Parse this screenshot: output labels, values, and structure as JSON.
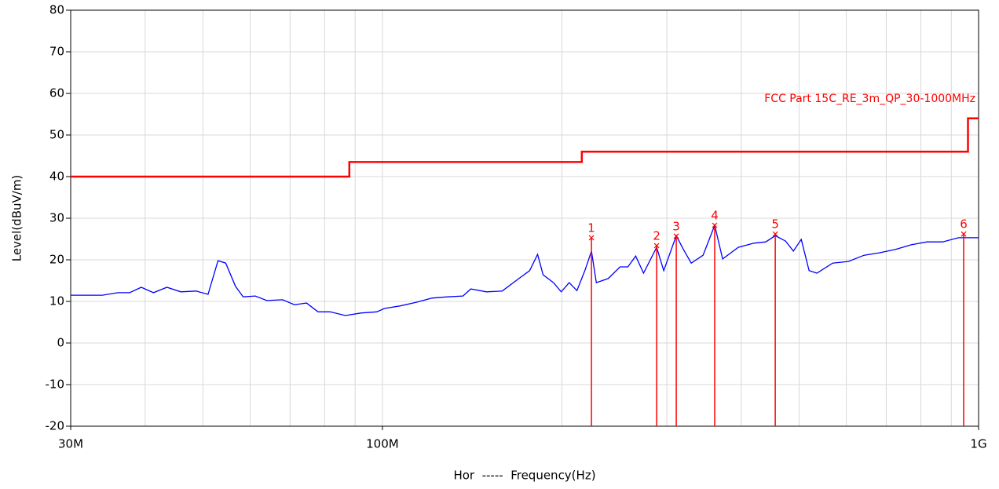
{
  "chart_data": {
    "type": "line",
    "xlabel": "Hor  -----  Frequency(Hz)",
    "ylabel": "Level(dBuV/m)",
    "xscale": "log",
    "xlim": [
      30000000,
      1000000000
    ],
    "ylim": [
      -20,
      80
    ],
    "xticks": [
      {
        "value": 30000000,
        "label": "30M"
      },
      {
        "value": 100000000,
        "label": "100M"
      },
      {
        "value": 1000000000,
        "label": "1G"
      }
    ],
    "xgrid": [
      40000000,
      50000000,
      60000000,
      70000000,
      80000000,
      90000000,
      200000000,
      300000000,
      400000000,
      500000000,
      600000000,
      700000000,
      800000000,
      900000000
    ],
    "yticks": [
      -20,
      -10,
      0,
      10,
      20,
      30,
      40,
      50,
      60,
      70,
      80
    ],
    "grid": true,
    "series": [
      {
        "color": "#0000ff",
        "x": [
          30000000,
          33900000,
          36000000,
          37680000,
          39400000,
          41300000,
          43500000,
          45900000,
          48700000,
          51000000,
          53000000,
          54600000,
          56700000,
          58400000,
          61200000,
          64000000,
          68000000,
          71200000,
          74600000,
          78000000,
          81700000,
          86700000,
          92000000,
          97800000,
          100800000,
          107000000,
          114000000,
          121000000,
          128600000,
          136500000,
          140700000,
          149400000,
          158800000,
          168700000,
          176600000,
          182100000,
          186000000,
          193600000,
          199500000,
          205700000,
          212000000,
          218600000,
          224200000,
          228500000,
          239200000,
          250400000,
          258100000,
          266000000,
          274200000,
          288400000,
          296400000,
          311100000,
          319800000,
          329600000,
          345000000,
          360900000,
          372100000,
          395300000,
          420000000,
          439600000,
          456000000,
          474400000,
          489000000,
          504100000,
          519600000,
          535500000,
          569100000,
          604700000,
          642600000,
          682700000,
          725500000,
          770800000,
          819000000,
          870300000,
          924600000,
          1000000000
        ],
        "values": [
          11.5,
          11.5,
          12.1,
          12.1,
          13.4,
          12.1,
          13.4,
          12.3,
          12.5,
          11.7,
          19.8,
          19.2,
          13.6,
          11.1,
          11.3,
          10.2,
          10.4,
          9.2,
          9.6,
          7.5,
          7.5,
          6.6,
          7.2,
          7.5,
          8.3,
          8.9,
          9.8,
          10.8,
          11.1,
          11.3,
          13.0,
          12.3,
          12.5,
          15.3,
          17.4,
          21.3,
          16.4,
          14.5,
          12.3,
          14.5,
          12.6,
          17.4,
          22.1,
          14.5,
          15.5,
          18.3,
          18.3,
          20.9,
          16.8,
          23.0,
          17.4,
          25.8,
          22.5,
          19.2,
          21.1,
          28.3,
          20.2,
          23.0,
          24.0,
          24.3,
          25.8,
          24.5,
          22.1,
          24.9,
          17.4,
          16.8,
          19.2,
          19.6,
          21.1,
          21.7,
          22.5,
          23.6,
          24.3,
          24.3,
          25.3,
          25.3
        ]
      },
      {
        "name": "FCC Part 15C_RE_3m_QP_30-1000MHz",
        "color": "#ff0000",
        "x": [
          30000000,
          88000000,
          88000000,
          216000000,
          216000000,
          960000000,
          960000000,
          1000000000
        ],
        "values": [
          40,
          40,
          43.5,
          43.5,
          46,
          46,
          54,
          54
        ]
      }
    ],
    "markers": {
      "color": "#ff0000",
      "labels": [
        "1",
        "2",
        "3",
        "4",
        "5",
        "6"
      ],
      "x": [
        224200000,
        288400000,
        311100000,
        360900000,
        456000000,
        944000000
      ],
      "values": [
        25.3,
        23.4,
        25.7,
        28.3,
        26.2,
        26.2
      ]
    }
  }
}
